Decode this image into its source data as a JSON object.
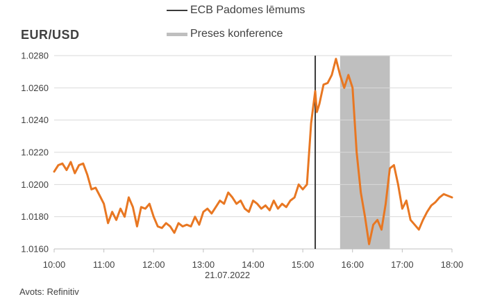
{
  "chart_data": {
    "type": "line",
    "title": "EUR/USD",
    "date_label": "21.07.2022",
    "source": "Avots: Refinitiv",
    "x_ticks": [
      "10:00",
      "11:00",
      "12:00",
      "13:00",
      "14:00",
      "15:00",
      "16:00",
      "17:00",
      "18:00"
    ],
    "y_ticks": [
      "1.0160",
      "1.0180",
      "1.0200",
      "1.0220",
      "1.0240",
      "1.0260",
      "1.0280"
    ],
    "xlim": [
      "10:00",
      "18:00"
    ],
    "ylim": [
      1.016,
      1.028
    ],
    "grid": "horizontal",
    "legend_placement": "top-center",
    "legend": [
      {
        "label": "ECB Padomes lēmums",
        "kind": "line",
        "color": "#3a3a3a"
      },
      {
        "label": "Preses konference",
        "kind": "band",
        "color": "#bfbfbf"
      }
    ],
    "decision_time": "15:15",
    "press_conference": {
      "start": "15:45",
      "end": "16:45"
    },
    "series": [
      {
        "color": "#e87722",
        "x": [
          "10:00",
          "10:05",
          "10:10",
          "10:15",
          "10:20",
          "10:25",
          "10:30",
          "10:35",
          "10:40",
          "10:45",
          "10:50",
          "10:55",
          "11:00",
          "11:05",
          "11:10",
          "11:15",
          "11:20",
          "11:25",
          "11:30",
          "11:35",
          "11:40",
          "11:45",
          "11:50",
          "11:55",
          "12:00",
          "12:05",
          "12:10",
          "12:15",
          "12:20",
          "12:25",
          "12:30",
          "12:35",
          "12:40",
          "12:45",
          "12:50",
          "12:55",
          "13:00",
          "13:05",
          "13:10",
          "13:15",
          "13:20",
          "13:25",
          "13:30",
          "13:35",
          "13:40",
          "13:45",
          "13:50",
          "13:55",
          "14:00",
          "14:05",
          "14:10",
          "14:15",
          "14:20",
          "14:25",
          "14:30",
          "14:35",
          "14:40",
          "14:45",
          "14:50",
          "14:55",
          "15:00",
          "15:05",
          "15:10",
          "15:15",
          "15:17",
          "15:20",
          "15:25",
          "15:30",
          "15:35",
          "15:40",
          "15:45",
          "15:50",
          "15:55",
          "16:00",
          "16:05",
          "16:10",
          "16:15",
          "16:20",
          "16:25",
          "16:30",
          "16:35",
          "16:40",
          "16:45",
          "16:50",
          "16:55",
          "17:00",
          "17:05",
          "17:10",
          "17:15",
          "17:20",
          "17:25",
          "17:30",
          "17:35",
          "17:40",
          "17:45",
          "17:50",
          "17:55",
          "18:00"
        ],
        "values": [
          1.0208,
          1.0212,
          1.0213,
          1.0209,
          1.0214,
          1.0207,
          1.0212,
          1.0213,
          1.0206,
          1.0197,
          1.0198,
          1.0193,
          1.0188,
          1.0176,
          1.0183,
          1.0178,
          1.0185,
          1.018,
          1.0192,
          1.0186,
          1.0174,
          1.0186,
          1.0185,
          1.0188,
          1.018,
          1.0174,
          1.0173,
          1.0176,
          1.0174,
          1.017,
          1.0176,
          1.0174,
          1.0175,
          1.0174,
          1.018,
          1.0175,
          1.0183,
          1.0185,
          1.0182,
          1.0186,
          1.019,
          1.0188,
          1.0195,
          1.0192,
          1.0188,
          1.019,
          1.0185,
          1.0183,
          1.019,
          1.0188,
          1.0185,
          1.0187,
          1.0184,
          1.019,
          1.0185,
          1.0188,
          1.0186,
          1.019,
          1.0192,
          1.02,
          1.0197,
          1.02,
          1.0238,
          1.0258,
          1.0245,
          1.025,
          1.0262,
          1.0263,
          1.0268,
          1.0278,
          1.0268,
          1.026,
          1.0268,
          1.026,
          1.022,
          1.0195,
          1.018,
          1.0163,
          1.0175,
          1.0178,
          1.0172,
          1.0188,
          1.021,
          1.0212,
          1.02,
          1.0185,
          1.019,
          1.0178,
          1.0175,
          1.0172,
          1.0178,
          1.0183,
          1.0187,
          1.0189,
          1.0192,
          1.0194,
          1.0193,
          1.0192
        ]
      }
    ]
  }
}
